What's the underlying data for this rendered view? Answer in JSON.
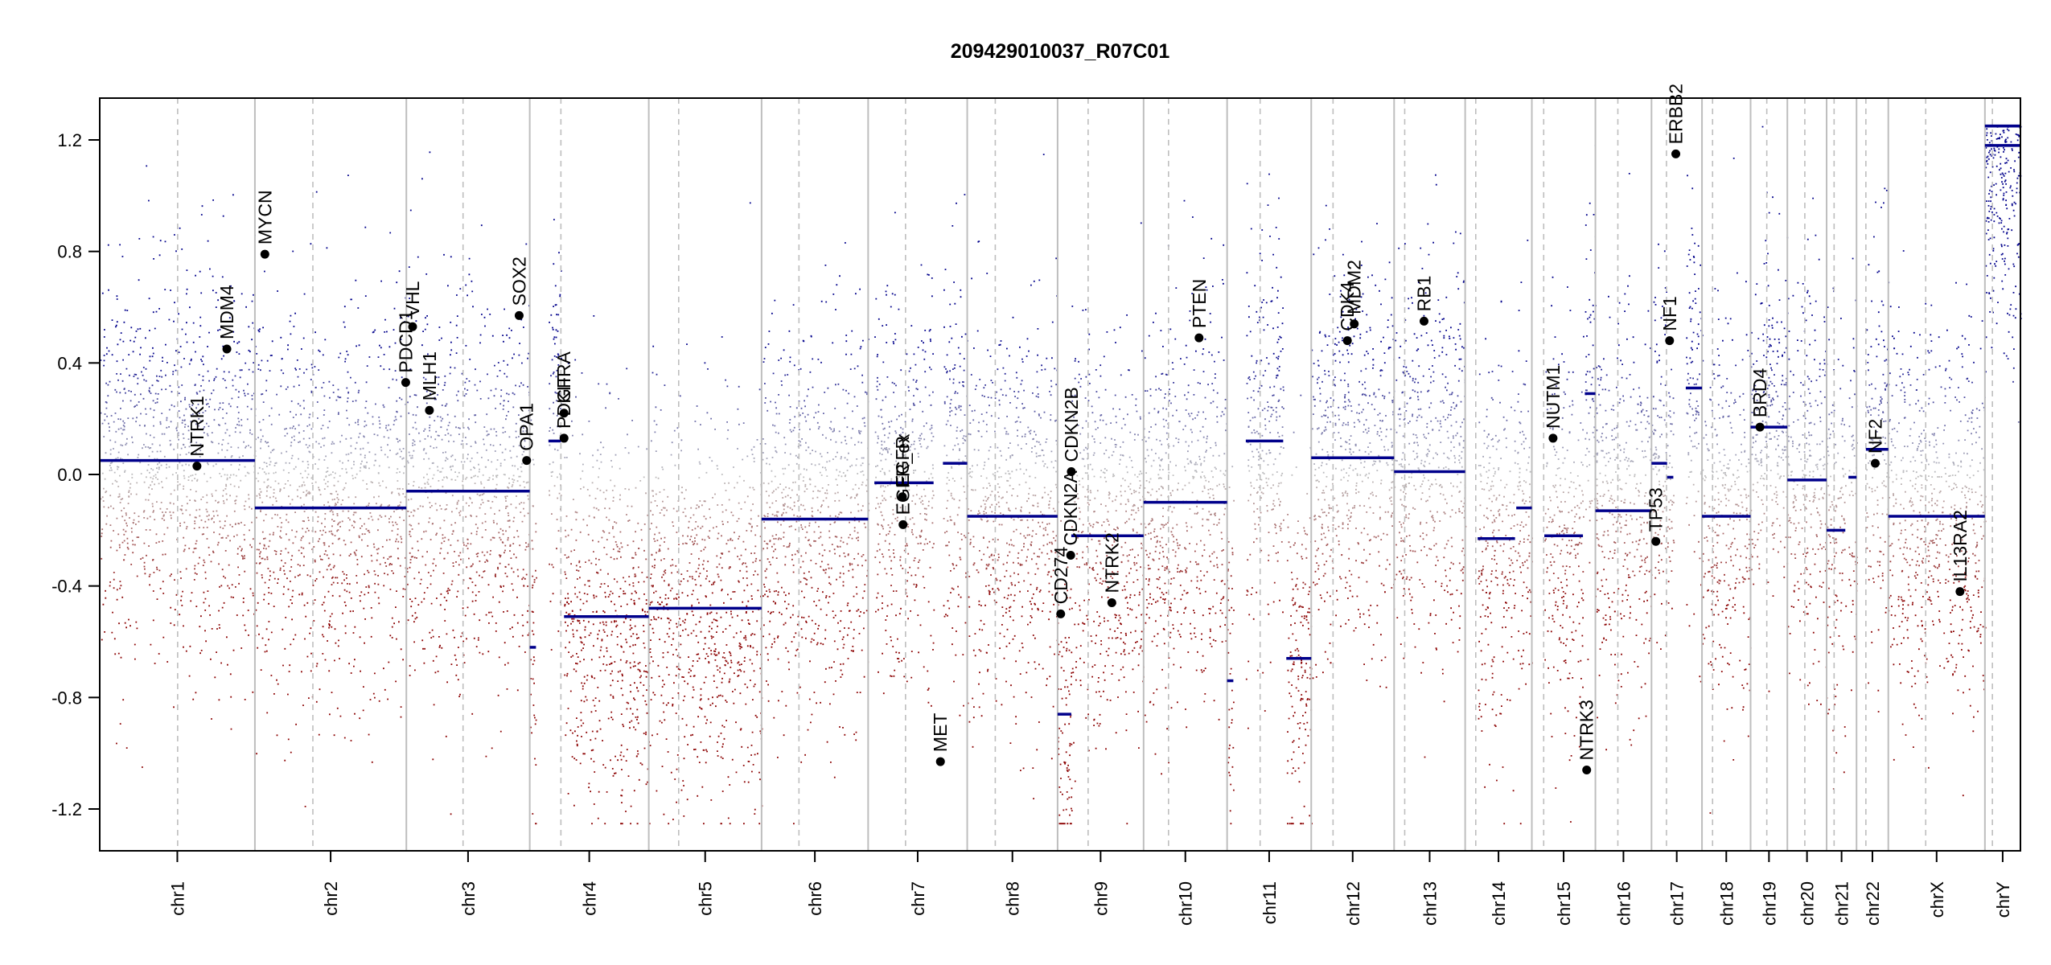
{
  "chart_data": {
    "type": "scatter",
    "title": "209429010037_R07C01",
    "xlabel": "",
    "ylabel": "",
    "ylim": [
      -1.35,
      1.35
    ],
    "yticks": [
      -1.2,
      -0.8,
      -0.4,
      0.0,
      0.4,
      0.8,
      1.2
    ],
    "ytick_labels": [
      "-1.2",
      "-0.8",
      "-0.4",
      "0.0",
      "0.4",
      "0.8",
      "1.2"
    ],
    "colors": {
      "gain": "#00008B",
      "loss": "#8B0000",
      "neutral": "#BEBEBE",
      "segment": "#00008B",
      "frame": "#000000",
      "separator": "#BEBEBE",
      "centromere": "#BEBEBE"
    },
    "chromosomes": [
      {
        "name": "chr1",
        "length": 249,
        "centromere": 125
      },
      {
        "name": "chr2",
        "length": 243,
        "centromere": 93
      },
      {
        "name": "chr3",
        "length": 198,
        "centromere": 91
      },
      {
        "name": "chr4",
        "length": 191,
        "centromere": 50
      },
      {
        "name": "chr5",
        "length": 181,
        "centromere": 48
      },
      {
        "name": "chr6",
        "length": 171,
        "centromere": 60
      },
      {
        "name": "chr7",
        "length": 159,
        "centromere": 60
      },
      {
        "name": "chr8",
        "length": 145,
        "centromere": 45
      },
      {
        "name": "chr9",
        "length": 138,
        "centromere": 49
      },
      {
        "name": "chr10",
        "length": 134,
        "centromere": 40
      },
      {
        "name": "chr11",
        "length": 135,
        "centromere": 53
      },
      {
        "name": "chr12",
        "length": 133,
        "centromere": 35
      },
      {
        "name": "chr13",
        "length": 114,
        "centromere": 17
      },
      {
        "name": "chr14",
        "length": 107,
        "centromere": 17
      },
      {
        "name": "chr15",
        "length": 102,
        "centromere": 19
      },
      {
        "name": "chr16",
        "length": 90,
        "centromere": 36
      },
      {
        "name": "chr17",
        "length": 81,
        "centromere": 24
      },
      {
        "name": "chr18",
        "length": 78,
        "centromere": 17
      },
      {
        "name": "chr19",
        "length": 59,
        "centromere": 26
      },
      {
        "name": "chr20",
        "length": 63,
        "centromere": 28
      },
      {
        "name": "chr21",
        "length": 48,
        "centromere": 12
      },
      {
        "name": "chr22",
        "length": 51,
        "centromere": 15
      },
      {
        "name": "chrX",
        "length": 155,
        "centromere": 60
      },
      {
        "name": "chrY",
        "length": 57,
        "centromere": 12
      }
    ],
    "segments": [
      {
        "chr": "chr1",
        "start": 0,
        "end": 249,
        "value": 0.05
      },
      {
        "chr": "chr2",
        "start": 0,
        "end": 243,
        "value": -0.12
      },
      {
        "chr": "chr3",
        "start": 0,
        "end": 198,
        "value": -0.06
      },
      {
        "chr": "chr4",
        "start": 0,
        "end": 10,
        "value": -0.62
      },
      {
        "chr": "chr4",
        "start": 30,
        "end": 50,
        "value": 0.12
      },
      {
        "chr": "chr4",
        "start": 55,
        "end": 191,
        "value": -0.51
      },
      {
        "chr": "chr5",
        "start": 0,
        "end": 181,
        "value": -0.48
      },
      {
        "chr": "chr6",
        "start": 0,
        "end": 171,
        "value": -0.16
      },
      {
        "chr": "chr7",
        "start": 10,
        "end": 105,
        "value": -0.03
      },
      {
        "chr": "chr7",
        "start": 120,
        "end": 159,
        "value": 0.04
      },
      {
        "chr": "chr8",
        "start": 0,
        "end": 145,
        "value": -0.15
      },
      {
        "chr": "chr9",
        "start": 0,
        "end": 22,
        "value": -0.86
      },
      {
        "chr": "chr9",
        "start": 22,
        "end": 138,
        "value": -0.22
      },
      {
        "chr": "chr10",
        "start": 0,
        "end": 134,
        "value": -0.1
      },
      {
        "chr": "chr11",
        "start": 0,
        "end": 10,
        "value": -0.74
      },
      {
        "chr": "chr11",
        "start": 30,
        "end": 90,
        "value": 0.12
      },
      {
        "chr": "chr11",
        "start": 95,
        "end": 135,
        "value": -0.66
      },
      {
        "chr": "chr12",
        "start": 0,
        "end": 133,
        "value": 0.06
      },
      {
        "chr": "chr13",
        "start": 0,
        "end": 114,
        "value": 0.01
      },
      {
        "chr": "chr14",
        "start": 20,
        "end": 80,
        "value": -0.23
      },
      {
        "chr": "chr14",
        "start": 82,
        "end": 107,
        "value": -0.12
      },
      {
        "chr": "chr15",
        "start": 20,
        "end": 82,
        "value": -0.22
      },
      {
        "chr": "chr15",
        "start": 85,
        "end": 102,
        "value": 0.29
      },
      {
        "chr": "chr16",
        "start": 0,
        "end": 90,
        "value": -0.13
      },
      {
        "chr": "chr17",
        "start": 0,
        "end": 25,
        "value": 0.04
      },
      {
        "chr": "chr17",
        "start": 25,
        "end": 35,
        "value": -0.01
      },
      {
        "chr": "chr17",
        "start": 55,
        "end": 81,
        "value": 0.31
      },
      {
        "chr": "chr18",
        "start": 0,
        "end": 78,
        "value": -0.15
      },
      {
        "chr": "chr19",
        "start": 0,
        "end": 59,
        "value": 0.17
      },
      {
        "chr": "chr20",
        "start": 0,
        "end": 63,
        "value": -0.02
      },
      {
        "chr": "chr21",
        "start": 0,
        "end": 30,
        "value": -0.2
      },
      {
        "chr": "chr21",
        "start": 35,
        "end": 48,
        "value": -0.01
      },
      {
        "chr": "chr22",
        "start": 15,
        "end": 51,
        "value": 0.09
      },
      {
        "chrY_note": "",
        "chr": "chrX",
        "start": 0,
        "end": 155,
        "value": -0.15
      },
      {
        "chr": "chrY",
        "start": 0,
        "end": 57,
        "value": 1.18
      },
      {
        "chr": "chrY",
        "start": 0,
        "end": 57,
        "value": 1.25
      }
    ],
    "genes": [
      {
        "name": "NTRK1",
        "chr": "chr1",
        "pos": 156,
        "value": 0.03
      },
      {
        "name": "MDM4",
        "chr": "chr1",
        "pos": 204,
        "value": 0.45
      },
      {
        "name": "MYCN",
        "chr": "chr2",
        "pos": 16,
        "value": 0.79
      },
      {
        "name": "PDCD1",
        "chr": "chr2",
        "pos": 242,
        "value": 0.33
      },
      {
        "name": "VHL",
        "chr": "chr3",
        "pos": 10,
        "value": 0.53
      },
      {
        "name": "MLH1",
        "chr": "chr3",
        "pos": 37,
        "value": 0.23
      },
      {
        "name": "SOX2",
        "chr": "chr3",
        "pos": 181,
        "value": 0.57
      },
      {
        "name": "OPA1",
        "chr": "chr3",
        "pos": 193,
        "value": 0.05
      },
      {
        "name": "KIT",
        "chr": "chr4",
        "pos": 55,
        "value": 0.22
      },
      {
        "name": "PDGFRA",
        "chr": "chr4",
        "pos": 55,
        "value": 0.13
      },
      {
        "name": "EGFR",
        "chr": "chr7",
        "pos": 55,
        "value": -0.08
      },
      {
        "name": "EGFR_ex",
        "chr": "chr7",
        "pos": 56,
        "value": -0.18
      },
      {
        "name": "MET",
        "chr": "chr7",
        "pos": 116,
        "value": -1.03
      },
      {
        "name": "CD274",
        "chr": "chr9",
        "pos": 5,
        "value": -0.5
      },
      {
        "name": "CDKN2A",
        "chr": "chr9",
        "pos": 21,
        "value": -0.29
      },
      {
        "name": "CDKN2B",
        "chr": "chr9",
        "pos": 22,
        "value": 0.01
      },
      {
        "name": "NTRK2",
        "chr": "chr9",
        "pos": 87,
        "value": -0.46
      },
      {
        "name": "PTEN",
        "chr": "chr10",
        "pos": 89,
        "value": 0.49
      },
      {
        "name": "CDK4",
        "chr": "chr12",
        "pos": 58,
        "value": 0.48
      },
      {
        "name": "MDM2",
        "chr": "chr12",
        "pos": 69,
        "value": 0.54
      },
      {
        "name": "RB1",
        "chr": "chr13",
        "pos": 48,
        "value": 0.55
      },
      {
        "name": "NUTM1",
        "chr": "chr15",
        "pos": 34,
        "value": 0.13
      },
      {
        "name": "NTRK3",
        "chr": "chr15",
        "pos": 88,
        "value": -1.06
      },
      {
        "name": "TP53",
        "chr": "chr17",
        "pos": 7,
        "value": -0.24
      },
      {
        "name": "NF1",
        "chr": "chr17",
        "pos": 29,
        "value": 0.48
      },
      {
        "name": "ERBB2",
        "chr": "chr17",
        "pos": 39,
        "value": 1.15
      },
      {
        "name": "BRD4",
        "chr": "chr19",
        "pos": 15,
        "value": 0.17
      },
      {
        "name": "NF2",
        "chr": "chr22",
        "pos": 30,
        "value": 0.04
      },
      {
        "name": "IL13RA2",
        "chr": "chrX",
        "pos": 115,
        "value": -0.42
      }
    ],
    "gene_labels": {
      "NTRK1": "NTRK1",
      "MDM4": "MDM4",
      "MYCN": "MYCN",
      "PDCD1": "PDCD1",
      "VHL": "VHL",
      "MLH1": "MLH1",
      "SOX2": "SOX2",
      "OPA1": "OPA1",
      "KIT": "KIT",
      "PDGFRA": "PDGFRA",
      "EGFR": "EGFR",
      "EGFR_ex": "EGFR_ex",
      "MET": "MET",
      "CD274": "CD274",
      "CDKN2A": "CDKN2A",
      "CDKN2B": "CDKN2B",
      "NTRK2": "NTRK2",
      "PTEN": "PTEN",
      "CDK4": "CDK4",
      "MDM2": "MDM2",
      "RB1": "RB1",
      "NUTM1": "NUTM1",
      "NTRK3": "NTRK3",
      "TP53": "TP53",
      "NF1": "NF1",
      "ERBB2": "ERBB2",
      "BRD4": "BRD4",
      "NF2": "NF2",
      "IL13RA2": "IL13RA2"
    }
  }
}
